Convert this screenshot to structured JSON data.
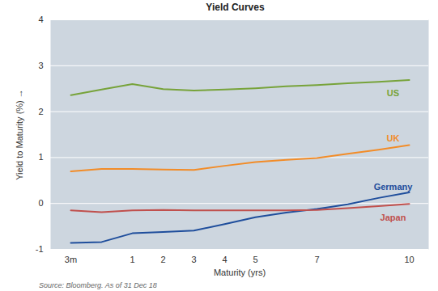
{
  "chart_data": {
    "type": "line",
    "title": "Yield Curves",
    "source": "Source: Bloomberg. As of 31 Dec 18",
    "x_label": "Maturity (yrs)",
    "y_label": "Yield to Maturity (%)",
    "categories": [
      "3m",
      null,
      "1",
      "2",
      "3",
      "4",
      "5",
      null,
      "7",
      null,
      null,
      "10"
    ],
    "series": [
      {
        "name": "US",
        "color": "#77a33a",
        "values": [
          2.36,
          2.48,
          2.6,
          2.49,
          2.46,
          2.48,
          2.51,
          2.55,
          2.58,
          2.62,
          2.65,
          2.69
        ]
      },
      {
        "name": "UK",
        "color": "#f28c28",
        "values": [
          0.7,
          0.75,
          0.75,
          0.74,
          0.73,
          0.82,
          0.9,
          0.95,
          0.99,
          1.08,
          1.17,
          1.27
        ]
      },
      {
        "name": "Germany",
        "color": "#1f4e9c",
        "values": [
          -0.86,
          -0.84,
          -0.65,
          -0.62,
          -0.59,
          -0.45,
          -0.3,
          -0.2,
          -0.12,
          -0.02,
          0.12,
          0.24
        ]
      },
      {
        "name": "Japan",
        "color": "#c0504d",
        "values": [
          -0.15,
          -0.19,
          -0.15,
          -0.14,
          -0.15,
          -0.15,
          -0.15,
          -0.15,
          -0.14,
          -0.1,
          -0.06,
          -0.01
        ]
      }
    ],
    "ylim": [
      -1,
      4
    ],
    "yticks": [
      -1,
      0,
      1,
      2,
      3,
      4
    ],
    "grid": true
  }
}
